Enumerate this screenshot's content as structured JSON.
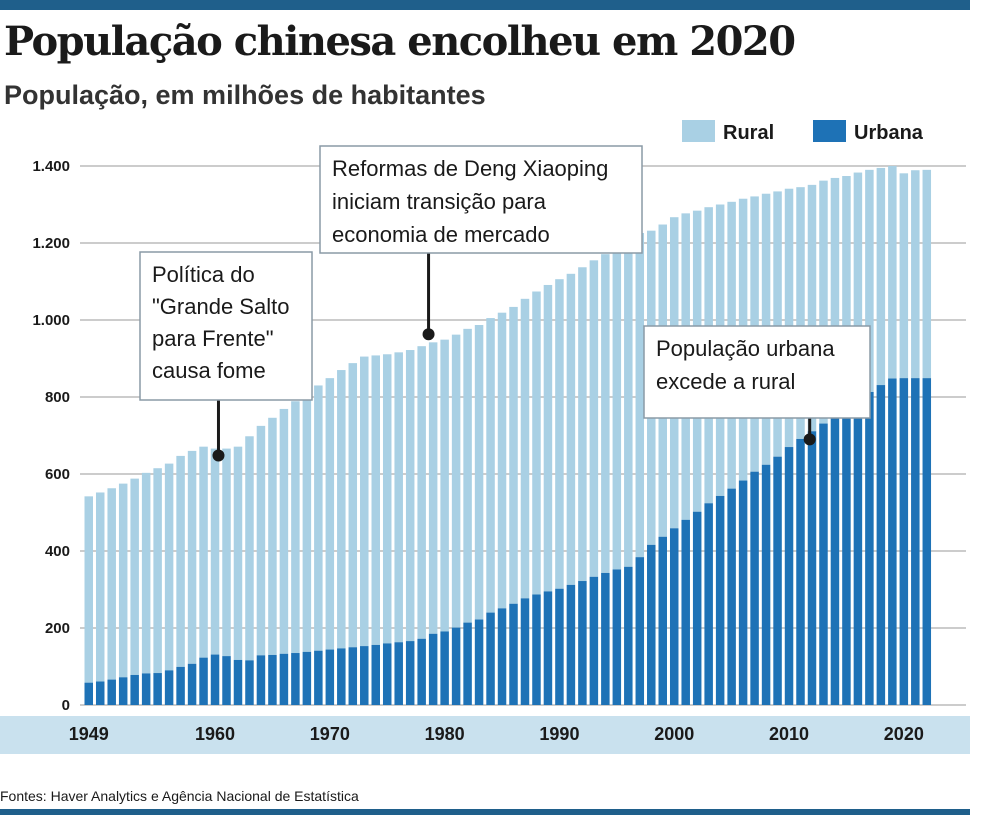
{
  "header": {
    "title": "População chinesa encolheu em 2020",
    "subtitle": "População, em milhões de habitantes"
  },
  "footer": {
    "source": "Fontes: Haver Analytics e Agência Nacional de Estatística"
  },
  "colors": {
    "rural": "#a9d0e4",
    "urbana": "#1e72b6",
    "grid": "#999999",
    "axis_band": "#c9e1ee",
    "rule": "#1f5f8b"
  },
  "chart_data": {
    "type": "bar",
    "stacked": true,
    "title": "População chinesa encolheu em 2020",
    "subtitle": "População, em milhões de habitantes",
    "xlabel": "",
    "ylabel": "",
    "ylim": [
      0,
      1400
    ],
    "yticks": [
      0,
      200,
      400,
      600,
      800,
      1000,
      1200,
      1400
    ],
    "ytick_labels": [
      "0",
      "200",
      "400",
      "600",
      "800",
      "1.000",
      "1.200",
      "1.400"
    ],
    "xticks": [
      1949,
      1960,
      1970,
      1980,
      1990,
      2000,
      2010,
      2020
    ],
    "xtick_labels": [
      "1949",
      "1960",
      "1970",
      "1980",
      "1990",
      "2000",
      "2010",
      "2020"
    ],
    "grid": true,
    "legend_position": "top-right",
    "categories": [
      1949,
      1950,
      1951,
      1952,
      1953,
      1954,
      1955,
      1956,
      1957,
      1958,
      1959,
      1960,
      1961,
      1962,
      1963,
      1964,
      1965,
      1966,
      1967,
      1968,
      1969,
      1970,
      1971,
      1972,
      1973,
      1974,
      1975,
      1976,
      1977,
      1978,
      1979,
      1980,
      1981,
      1982,
      1983,
      1984,
      1985,
      1986,
      1987,
      1988,
      1989,
      1990,
      1991,
      1992,
      1993,
      1994,
      1995,
      1996,
      1997,
      1998,
      1999,
      2000,
      2001,
      2002,
      2003,
      2004,
      2005,
      2006,
      2007,
      2008,
      2009,
      2010,
      2011,
      2012,
      2013,
      2014,
      2015,
      2016,
      2017,
      2018,
      2019,
      2020,
      2021,
      2022
    ],
    "series": [
      {
        "name": "Urbana",
        "values": [
          58,
          61,
          66,
          72,
          78,
          82,
          83,
          90,
          99,
          107,
          123,
          131,
          127,
          117,
          116,
          129,
          130,
          133,
          135,
          138,
          141,
          144,
          147,
          150,
          153,
          156,
          160,
          163,
          166,
          172,
          185,
          191,
          201,
          214,
          222,
          240,
          251,
          263,
          277,
          287,
          295,
          302,
          312,
          322,
          333,
          343,
          352,
          359,
          384,
          416,
          437,
          459,
          481,
          502,
          524,
          543,
          562,
          583,
          606,
          624,
          645,
          670,
          691,
          711,
          731,
          749,
          771,
          793,
          813,
          831,
          848,
          849,
          849,
          849
        ]
      },
      {
        "name": "Rural",
        "values": [
          484,
          491,
          497,
          503,
          510,
          521,
          532,
          537,
          548,
          553,
          548,
          535,
          539,
          554,
          582,
          596,
          616,
          636,
          654,
          670,
          689,
          705,
          723,
          738,
          752,
          752,
          751,
          753,
          756,
          760,
          757,
          758,
          761,
          763,
          765,
          765,
          768,
          771,
          778,
          787,
          796,
          804,
          808,
          815,
          822,
          828,
          828,
          827,
          842,
          816,
          811,
          808,
          796,
          782,
          769,
          757,
          745,
          732,
          715,
          704,
          689,
          671,
          654,
          640,
          631,
          620,
          603,
          590,
          577,
          564,
          552,
          532,
          540,
          541
        ]
      }
    ],
    "annotations": [
      {
        "text_lines": [
          "Política do",
          "\"Grande Salto",
          "para Frente\"",
          "causa fome"
        ],
        "year": 1960.3,
        "value": 648
      },
      {
        "text_lines": [
          "Reformas de Deng Xiaoping",
          "iniciam transição para",
          "economia de mercado"
        ],
        "year": 1978.6,
        "value": 963
      },
      {
        "text_lines": [
          "População urbana",
          "excede a rural"
        ],
        "year": 2011.8,
        "value": 690
      }
    ]
  }
}
